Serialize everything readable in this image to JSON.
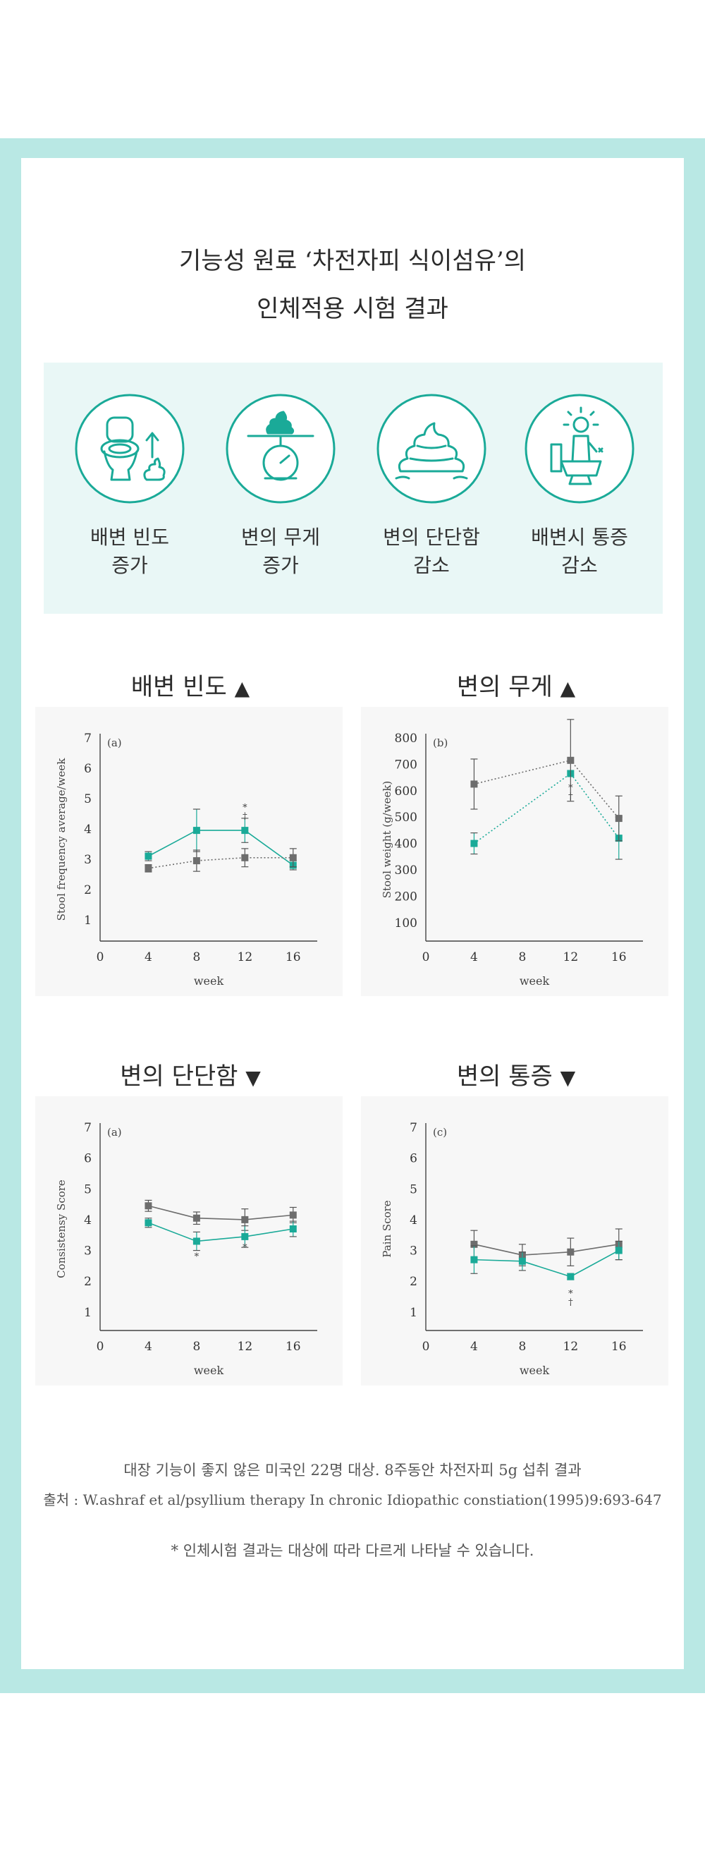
{
  "header": {
    "line1": "기능성 원료 ‘차전자피 식이섬유’의",
    "line2": "인체적용 시험 결과"
  },
  "benefits": [
    {
      "icon": "toilet-stool-up-icon",
      "line1": "배변 빈도",
      "line2": "증가"
    },
    {
      "icon": "scale-stool-icon",
      "line1": "변의 무게",
      "line2": "증가"
    },
    {
      "icon": "stool-swirl-icon",
      "line1": "변의 단단함",
      "line2": "감소"
    },
    {
      "icon": "person-toilet-sun-icon",
      "line1": "배변시 통증",
      "line2": "감소"
    }
  ],
  "colors": {
    "frame": "#b9e8e4",
    "benefit_bg": "#e9f7f6",
    "teal": "#1aaa98",
    "gray": "#6d6d6d"
  },
  "chart_titles": [
    {
      "label": "배변 빈도",
      "arrow": "▲"
    },
    {
      "label": "변의 무게",
      "arrow": "▲"
    },
    {
      "label": "변의 단단함",
      "arrow": "▼"
    },
    {
      "label": "변의 통증",
      "arrow": "▼"
    }
  ],
  "chart_data": [
    {
      "type": "line",
      "panel_label": "(a)",
      "xlabel": "week",
      "ylabel": "Stool frequency average/week",
      "x": [
        4,
        8,
        12,
        16
      ],
      "xticks": [
        0,
        4,
        8,
        12,
        16
      ],
      "yticks": [
        1,
        2,
        3,
        4,
        5,
        6,
        7
      ],
      "xlim": [
        0,
        18
      ],
      "ylim": [
        0.3,
        7
      ],
      "series": [
        {
          "color": "#1aaa98",
          "style": "solid",
          "values": [
            3.1,
            3.95,
            3.95,
            2.8
          ],
          "err": [
            0.15,
            0.7,
            0.4,
            0.15
          ]
        },
        {
          "color": "#6d6d6d",
          "style": "dotted",
          "values": [
            2.7,
            2.95,
            3.05,
            3.05
          ],
          "err": [
            0.12,
            0.35,
            0.3,
            0.3
          ]
        }
      ],
      "annotations": [
        {
          "x": 12,
          "y": 4.6,
          "text": "*\n†"
        }
      ]
    },
    {
      "type": "line",
      "panel_label": "(b)",
      "xlabel": "week",
      "ylabel": "Stool weight (g/week)",
      "x": [
        4,
        12,
        16
      ],
      "xticks": [
        0,
        4,
        8,
        12,
        16
      ],
      "yticks": [
        100,
        200,
        300,
        400,
        500,
        600,
        700,
        800
      ],
      "xlim": [
        0,
        18
      ],
      "ylim": [
        30,
        800
      ],
      "series": [
        {
          "color": "#1aaa98",
          "style": "dotted",
          "values": [
            400,
            665,
            420
          ],
          "err": [
            40,
            0,
            80
          ]
        },
        {
          "color": "#6d6d6d",
          "style": "dotted",
          "values": [
            625,
            715,
            495
          ],
          "err": [
            95,
            155,
            85
          ]
        }
      ],
      "annotations": [
        {
          "x": 12,
          "y": 600,
          "text": "*\n†"
        }
      ]
    },
    {
      "type": "line",
      "panel_label": "(a)",
      "xlabel": "week",
      "ylabel": "Consistensy Score",
      "x": [
        4,
        8,
        12,
        16
      ],
      "xticks": [
        0,
        4,
        8,
        12,
        16
      ],
      "yticks": [
        1,
        2,
        3,
        4,
        5,
        6,
        7
      ],
      "xlim": [
        0,
        18
      ],
      "ylim": [
        0.4,
        7
      ],
      "series": [
        {
          "color": "#6d6d6d",
          "style": "solid",
          "values": [
            4.45,
            4.05,
            4.0,
            4.15
          ],
          "err": [
            0.18,
            0.2,
            0.35,
            0.25
          ]
        },
        {
          "color": "#1aaa98",
          "style": "solid",
          "values": [
            3.9,
            3.3,
            3.45,
            3.7
          ],
          "err": [
            0.15,
            0.3,
            0.35,
            0.25
          ]
        }
      ],
      "annotations": [
        {
          "x": 8,
          "y": 2.7,
          "text": "*"
        },
        {
          "x": 12,
          "y": 3.0,
          "text": "*"
        }
      ]
    },
    {
      "type": "line",
      "panel_label": "(c)",
      "xlabel": "week",
      "ylabel": "Pain Score",
      "x": [
        4,
        8,
        12,
        16
      ],
      "xticks": [
        0,
        4,
        8,
        12,
        16
      ],
      "yticks": [
        1,
        2,
        3,
        4,
        5,
        6,
        7
      ],
      "xlim": [
        0,
        18
      ],
      "ylim": [
        0.4,
        7
      ],
      "series": [
        {
          "color": "#6d6d6d",
          "style": "solid",
          "values": [
            3.2,
            2.85,
            2.95,
            3.2
          ],
          "err": [
            0.45,
            0.35,
            0.45,
            0.5
          ]
        },
        {
          "color": "#1aaa98",
          "style": "solid",
          "values": [
            2.7,
            2.65,
            2.15,
            3.0
          ],
          "err": [
            0.45,
            0.3,
            0.1,
            0.3
          ]
        }
      ],
      "annotations": [
        {
          "x": 12,
          "y": 1.5,
          "text": "*\n†"
        }
      ]
    }
  ],
  "footer": {
    "line1": "대장 기능이 좋지 않은 미국인 22명 대상. 8주동안 차전자피 5g 섭취 결과",
    "line2": "출처 : W.ashraf et al/psyllium therapy In chronic Idiopathic constiation(1995)9:693-647",
    "disclaimer": "* 인체시험 결과는 대상에 따라 다르게 나타날 수 있습니다."
  }
}
